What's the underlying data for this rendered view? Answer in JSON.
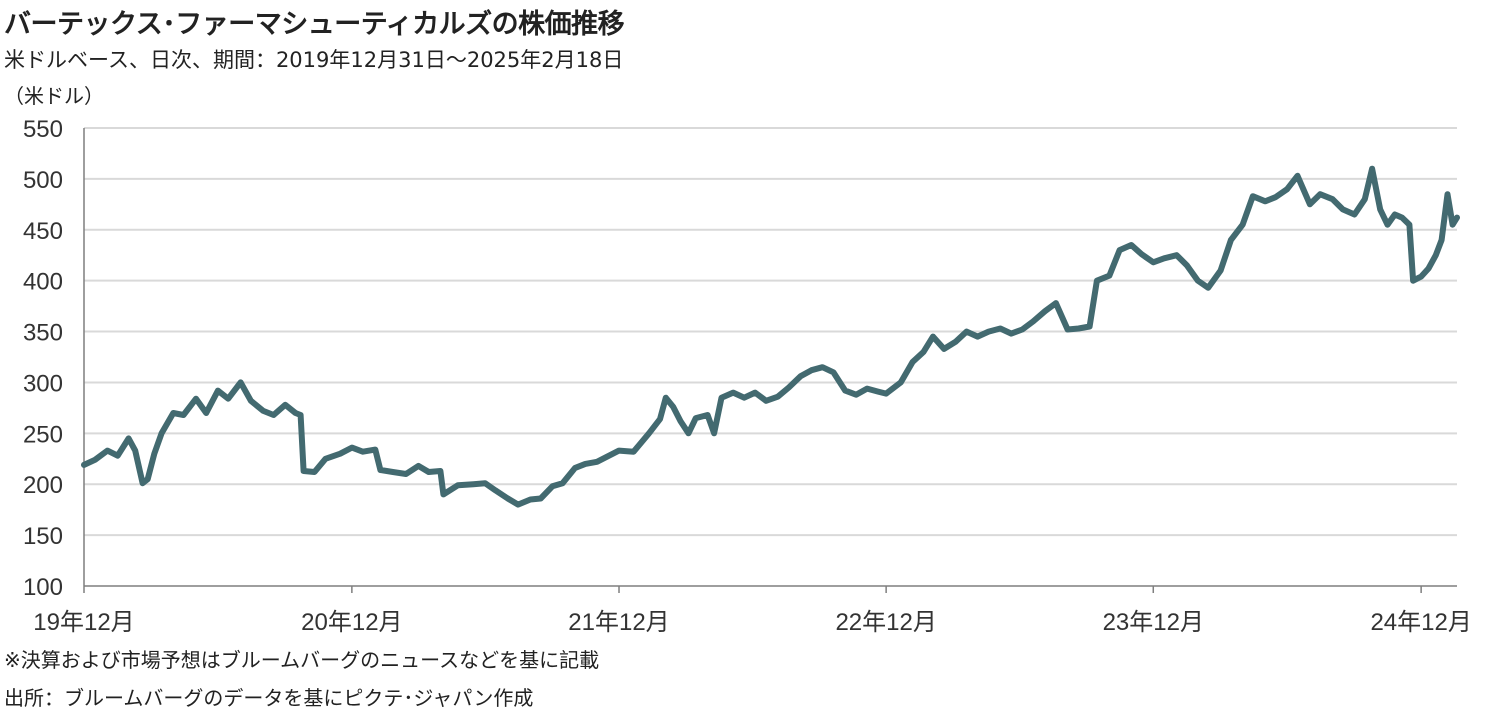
{
  "title": "バーテックス･ファーマシューティカルズの株価推移",
  "subtitle": "米ドルベース、日次、期間：2019年12月31日～2025年2月18日",
  "unit_label": "（米ドル）",
  "note": "※決算および市場予想はブルームバーグのニュースなどを基に記載",
  "source": "出所：ブルームバーグのデータを基にピクテ･ジャパン作成",
  "colors": {
    "line": "#436a70",
    "grid": "#d9d9d9",
    "axis": "#7f7f7f"
  },
  "chart_data": {
    "type": "line",
    "x_range": [
      "2019-12-31",
      "2025-02-18"
    ],
    "ylim": [
      100,
      550
    ],
    "y_ticks": [
      100,
      150,
      200,
      250,
      300,
      350,
      400,
      450,
      500,
      550
    ],
    "x_ticks": [
      {
        "date": "2019-12-31",
        "label": "19年12月"
      },
      {
        "date": "2020-12-31",
        "label": "20年12月"
      },
      {
        "date": "2021-12-31",
        "label": "21年12月"
      },
      {
        "date": "2022-12-31",
        "label": "22年12月"
      },
      {
        "date": "2023-12-31",
        "label": "23年12月"
      },
      {
        "date": "2024-12-31",
        "label": "24年12月"
      }
    ],
    "grid": true,
    "series": [
      {
        "points": [
          [
            "2019-12-31",
            219
          ],
          [
            "2020-01-15",
            224
          ],
          [
            "2020-02-01",
            233
          ],
          [
            "2020-02-15",
            228
          ],
          [
            "2020-03-01",
            245
          ],
          [
            "2020-03-10",
            233
          ],
          [
            "2020-03-20",
            201
          ],
          [
            "2020-03-27",
            205
          ],
          [
            "2020-04-05",
            230
          ],
          [
            "2020-04-15",
            250
          ],
          [
            "2020-05-01",
            270
          ],
          [
            "2020-05-15",
            268
          ],
          [
            "2020-06-01",
            284
          ],
          [
            "2020-06-15",
            270
          ],
          [
            "2020-07-01",
            292
          ],
          [
            "2020-07-15",
            284
          ],
          [
            "2020-08-01",
            300
          ],
          [
            "2020-08-15",
            282
          ],
          [
            "2020-09-01",
            272
          ],
          [
            "2020-09-15",
            268
          ],
          [
            "2020-10-01",
            278
          ],
          [
            "2020-10-15",
            270
          ],
          [
            "2020-10-22",
            268
          ],
          [
            "2020-10-26",
            213
          ],
          [
            "2020-11-10",
            212
          ],
          [
            "2020-11-25",
            225
          ],
          [
            "2020-12-15",
            230
          ],
          [
            "2020-12-31",
            236
          ],
          [
            "2021-01-15",
            232
          ],
          [
            "2021-02-01",
            234
          ],
          [
            "2021-02-08",
            214
          ],
          [
            "2021-02-25",
            212
          ],
          [
            "2021-03-15",
            210
          ],
          [
            "2021-04-01",
            218
          ],
          [
            "2021-04-15",
            212
          ],
          [
            "2021-05-01",
            213
          ],
          [
            "2021-05-05",
            190
          ],
          [
            "2021-05-25",
            199
          ],
          [
            "2021-06-15",
            200
          ],
          [
            "2021-07-01",
            201
          ],
          [
            "2021-07-15",
            194
          ],
          [
            "2021-08-01",
            186
          ],
          [
            "2021-08-15",
            180
          ],
          [
            "2021-09-01",
            185
          ],
          [
            "2021-09-15",
            186
          ],
          [
            "2021-10-01",
            198
          ],
          [
            "2021-10-15",
            201
          ],
          [
            "2021-11-01",
            216
          ],
          [
            "2021-11-15",
            220
          ],
          [
            "2021-12-01",
            222
          ],
          [
            "2021-12-31",
            233
          ],
          [
            "2022-01-20",
            232
          ],
          [
            "2022-02-10",
            250
          ],
          [
            "2022-02-25",
            264
          ],
          [
            "2022-03-05",
            285
          ],
          [
            "2022-03-15",
            276
          ],
          [
            "2022-03-25",
            262
          ],
          [
            "2022-04-05",
            250
          ],
          [
            "2022-04-15",
            265
          ],
          [
            "2022-05-01",
            268
          ],
          [
            "2022-05-10",
            250
          ],
          [
            "2022-05-20",
            285
          ],
          [
            "2022-06-05",
            290
          ],
          [
            "2022-06-20",
            285
          ],
          [
            "2022-07-05",
            290
          ],
          [
            "2022-07-20",
            282
          ],
          [
            "2022-08-05",
            286
          ],
          [
            "2022-08-20",
            295
          ],
          [
            "2022-09-05",
            306
          ],
          [
            "2022-09-20",
            312
          ],
          [
            "2022-10-05",
            315
          ],
          [
            "2022-10-20",
            310
          ],
          [
            "2022-11-05",
            292
          ],
          [
            "2022-11-20",
            288
          ],
          [
            "2022-12-05",
            294
          ],
          [
            "2022-12-20",
            291
          ],
          [
            "2022-12-31",
            289
          ],
          [
            "2023-01-20",
            300
          ],
          [
            "2023-02-05",
            320
          ],
          [
            "2023-02-20",
            330
          ],
          [
            "2023-03-05",
            345
          ],
          [
            "2023-03-20",
            333
          ],
          [
            "2023-04-05",
            340
          ],
          [
            "2023-04-20",
            350
          ],
          [
            "2023-05-05",
            345
          ],
          [
            "2023-05-20",
            350
          ],
          [
            "2023-06-05",
            353
          ],
          [
            "2023-06-20",
            348
          ],
          [
            "2023-07-05",
            352
          ],
          [
            "2023-07-20",
            360
          ],
          [
            "2023-08-05",
            370
          ],
          [
            "2023-08-20",
            378
          ],
          [
            "2023-09-05",
            352
          ],
          [
            "2023-09-20",
            353
          ],
          [
            "2023-10-05",
            355
          ],
          [
            "2023-10-15",
            400
          ],
          [
            "2023-11-01",
            405
          ],
          [
            "2023-11-15",
            430
          ],
          [
            "2023-12-01",
            435
          ],
          [
            "2023-12-15",
            426
          ],
          [
            "2023-12-31",
            418
          ],
          [
            "2024-01-15",
            422
          ],
          [
            "2024-02-01",
            425
          ],
          [
            "2024-02-15",
            415
          ],
          [
            "2024-03-01",
            400
          ],
          [
            "2024-03-15",
            393
          ],
          [
            "2024-04-01",
            410
          ],
          [
            "2024-04-15",
            440
          ],
          [
            "2024-05-01",
            455
          ],
          [
            "2024-05-15",
            483
          ],
          [
            "2024-06-01",
            478
          ],
          [
            "2024-06-15",
            482
          ],
          [
            "2024-07-01",
            490
          ],
          [
            "2024-07-15",
            503
          ],
          [
            "2024-08-01",
            475
          ],
          [
            "2024-08-15",
            485
          ],
          [
            "2024-09-01",
            480
          ],
          [
            "2024-09-15",
            470
          ],
          [
            "2024-10-01",
            465
          ],
          [
            "2024-10-15",
            480
          ],
          [
            "2024-10-25",
            510
          ],
          [
            "2024-11-05",
            470
          ],
          [
            "2024-11-15",
            455
          ],
          [
            "2024-11-25",
            465
          ],
          [
            "2024-12-05",
            462
          ],
          [
            "2024-12-15",
            455
          ],
          [
            "2024-12-20",
            400
          ],
          [
            "2024-12-31",
            404
          ],
          [
            "2025-01-10",
            412
          ],
          [
            "2025-01-20",
            425
          ],
          [
            "2025-01-28",
            440
          ],
          [
            "2025-02-05",
            485
          ],
          [
            "2025-02-12",
            455
          ],
          [
            "2025-02-18",
            462
          ]
        ]
      }
    ]
  }
}
